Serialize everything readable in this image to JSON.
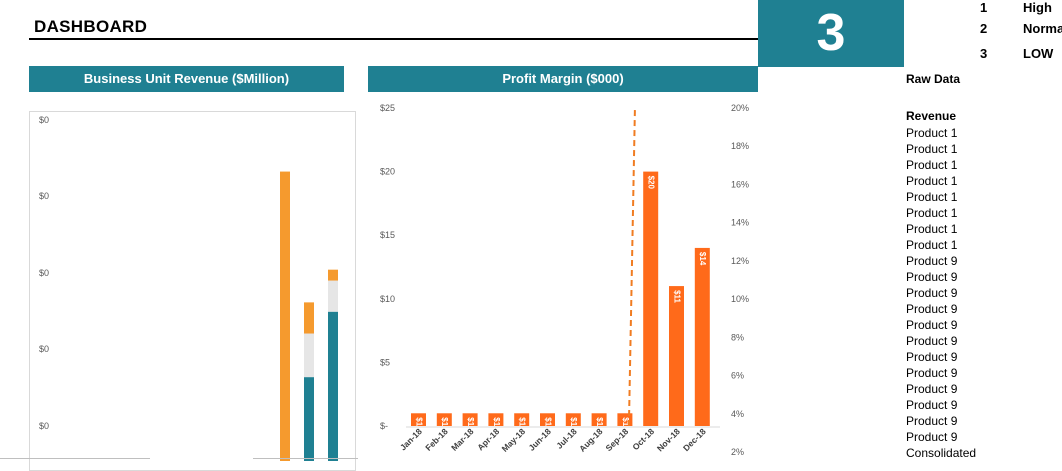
{
  "dashboard": {
    "title": "DASHBOARD",
    "selected_value": "3"
  },
  "priority": [
    {
      "num": "1",
      "label": "High"
    },
    {
      "num": "2",
      "label": "Normal"
    },
    {
      "num": "3",
      "label": "LOW"
    }
  ],
  "raw_data": {
    "title": "Raw Data",
    "revenue_label": "Revenue",
    "items": [
      "Product 1",
      "Product 1",
      "Product 1",
      "Product 1",
      "Product 1",
      "Product 1",
      "Product 1",
      "Product 1",
      "Product 9",
      "Product 9",
      "Product 9",
      "Product 9",
      "Product 9",
      "Product 9",
      "Product 9",
      "Product 9",
      "Product 9",
      "Product 9",
      "Product 9",
      "Product 9",
      "Consolidated"
    ]
  },
  "colors": {
    "teal": "#1f8092",
    "orange": "#f59a2e",
    "bright_orange": "#ff6a1a",
    "light_gray": "#e6e6e6",
    "dashed_line": "#f07c22"
  },
  "chart_data": [
    {
      "type": "bar",
      "title": "Business Unit Revenue ($Million)",
      "stacked": true,
      "ytick_labels": [
        "$0",
        "$0",
        "$0",
        "$0",
        "$0"
      ],
      "series_colors": [
        "#1f8092",
        "#e6e6e6",
        "#f59a2e"
      ],
      "bars": [
        {
          "segments": [
            0,
            0,
            100
          ]
        },
        {
          "segments": [
            34,
            14,
            10
          ]
        },
        {
          "segments": [
            55,
            10,
            3.5
          ]
        }
      ],
      "ylim": [
        0,
        105
      ],
      "grid": false
    },
    {
      "type": "bar",
      "title": "Profit Margin ($000)",
      "categories": [
        "Jan-18",
        "Feb-18",
        "Mar-18",
        "Apr-18",
        "May-18",
        "Jun-18",
        "Jul-18",
        "Aug-18",
        "Sep-18",
        "Oct-18",
        "Nov-18",
        "Dec-18"
      ],
      "values": [
        1,
        1,
        1,
        1,
        1,
        1,
        1,
        1,
        1,
        20,
        11,
        14
      ],
      "data_labels": [
        "$1",
        "$1",
        "$1",
        "$1",
        "$1",
        "$1",
        "$1",
        "$1",
        "$1",
        "$20",
        "$11",
        "$14"
      ],
      "ylim": [
        0,
        25
      ],
      "yticks": [
        0,
        5,
        10,
        15,
        20,
        25
      ],
      "ytick_labels": [
        "$-",
        "$5",
        "$10",
        "$15",
        "$20",
        "$25"
      ],
      "y2ticks": [
        "2%",
        "4%",
        "6%",
        "8%",
        "10%",
        "12%",
        "14%",
        "16%",
        "18%",
        "20%"
      ],
      "marker_after_category": "Sep-18",
      "grid": false
    }
  ]
}
